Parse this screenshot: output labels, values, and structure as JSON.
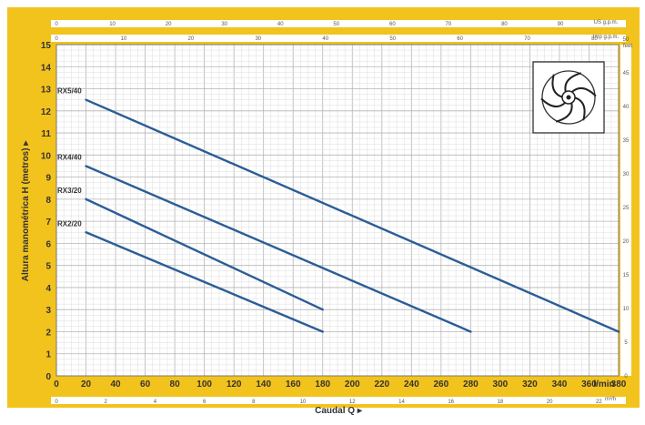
{
  "chart_data": {
    "type": "line",
    "xlabel": "Caudal Q ▸",
    "ylabel": "Altura manométrica H (metros) ▸",
    "x_unit_main": "l/min",
    "x_unit_m3h": "m³/h",
    "x_unit_usgpm": "US g.p.m.",
    "x_unit_impgpm": "Imp g.p.m.",
    "y_unit_feet": "feet",
    "xlim": [
      0,
      380
    ],
    "ylim": [
      0,
      15
    ],
    "x_ticks": [
      "0",
      "20",
      "40",
      "60",
      "80",
      "100",
      "120",
      "140",
      "160",
      "180",
      "200",
      "220",
      "240",
      "260",
      "280",
      "300",
      "320",
      "340",
      "360",
      "380"
    ],
    "y_ticks": [
      "0",
      "1",
      "2",
      "3",
      "4",
      "5",
      "6",
      "7",
      "8",
      "9",
      "10",
      "11",
      "12",
      "13",
      "14",
      "15"
    ],
    "m3h_ticks": [
      "0",
      "2",
      "4",
      "6",
      "8",
      "10",
      "12",
      "14",
      "16",
      "18",
      "20",
      "22"
    ],
    "usgpm_ticks": [
      "0",
      "10",
      "20",
      "30",
      "40",
      "50",
      "60",
      "70",
      "80",
      "90"
    ],
    "impgpm_ticks": [
      "0",
      "10",
      "20",
      "30",
      "40",
      "50",
      "60",
      "70",
      "80"
    ],
    "feet_ticks": [
      "0",
      "5",
      "10",
      "15",
      "20",
      "25",
      "30",
      "35",
      "40",
      "45",
      "50"
    ],
    "grid": true,
    "series": [
      {
        "name": "RX5/40",
        "x": [
          20,
          380
        ],
        "y": [
          12.5,
          2
        ]
      },
      {
        "name": "RX4/40",
        "x": [
          20,
          280
        ],
        "y": [
          9.5,
          2
        ]
      },
      {
        "name": "RX3/20",
        "x": [
          20,
          180
        ],
        "y": [
          8,
          3
        ]
      },
      {
        "name": "RX2/20",
        "x": [
          20,
          180
        ],
        "y": [
          6.5,
          2
        ]
      }
    ],
    "colors": {
      "frame": "#f2c31c",
      "line": "#2b5d97",
      "grid_major": "#b5b5b5",
      "grid_minor": "#dcdcdc",
      "axis_text": "#333333",
      "small_text": "#555555"
    }
  },
  "icons": {
    "impeller": "impeller-icon"
  }
}
